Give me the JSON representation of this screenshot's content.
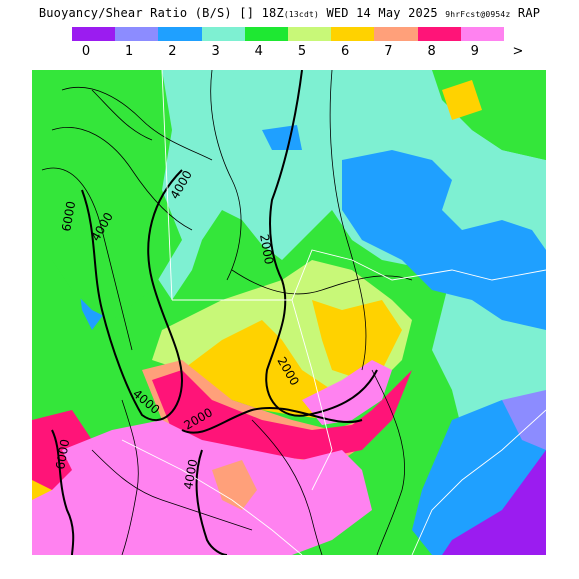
{
  "header": {
    "title_main": "Buoyancy/Shear Ratio (B/S)",
    "title_units": "[]",
    "title_time": "18Z",
    "title_cdt": "(13cdt)",
    "title_date": "WED 14 May 2025",
    "title_fcst": "9hrFcst@0954z",
    "title_model": "RAP"
  },
  "legend": {
    "labels": [
      "0",
      "1",
      "2",
      "3",
      "4",
      "5",
      "6",
      "7",
      "8",
      "9",
      ">"
    ],
    "colors": [
      "#9b1cf0",
      "#8c8cff",
      "#1fa0ff",
      "#7ef0d2",
      "#1ee832",
      "#c8f878",
      "#ffd200",
      "#ffa07a",
      "#ff1478",
      "#ff82f0"
    ]
  },
  "map": {
    "contour_labels": [
      "6000",
      "4000",
      "4000",
      "2000",
      "2000",
      "4000",
      "2000",
      "6000",
      "4000"
    ],
    "colors": {
      "green": "#34e63a",
      "cyan": "#7ef0d2",
      "blue": "#1fa0ff",
      "lightblue": "#8c8cff",
      "purple": "#9b1cf0",
      "lime": "#c8f878",
      "yellow": "#ffd200",
      "salmon": "#ffa07a",
      "red": "#ff1478",
      "pink": "#ff82f0"
    }
  }
}
